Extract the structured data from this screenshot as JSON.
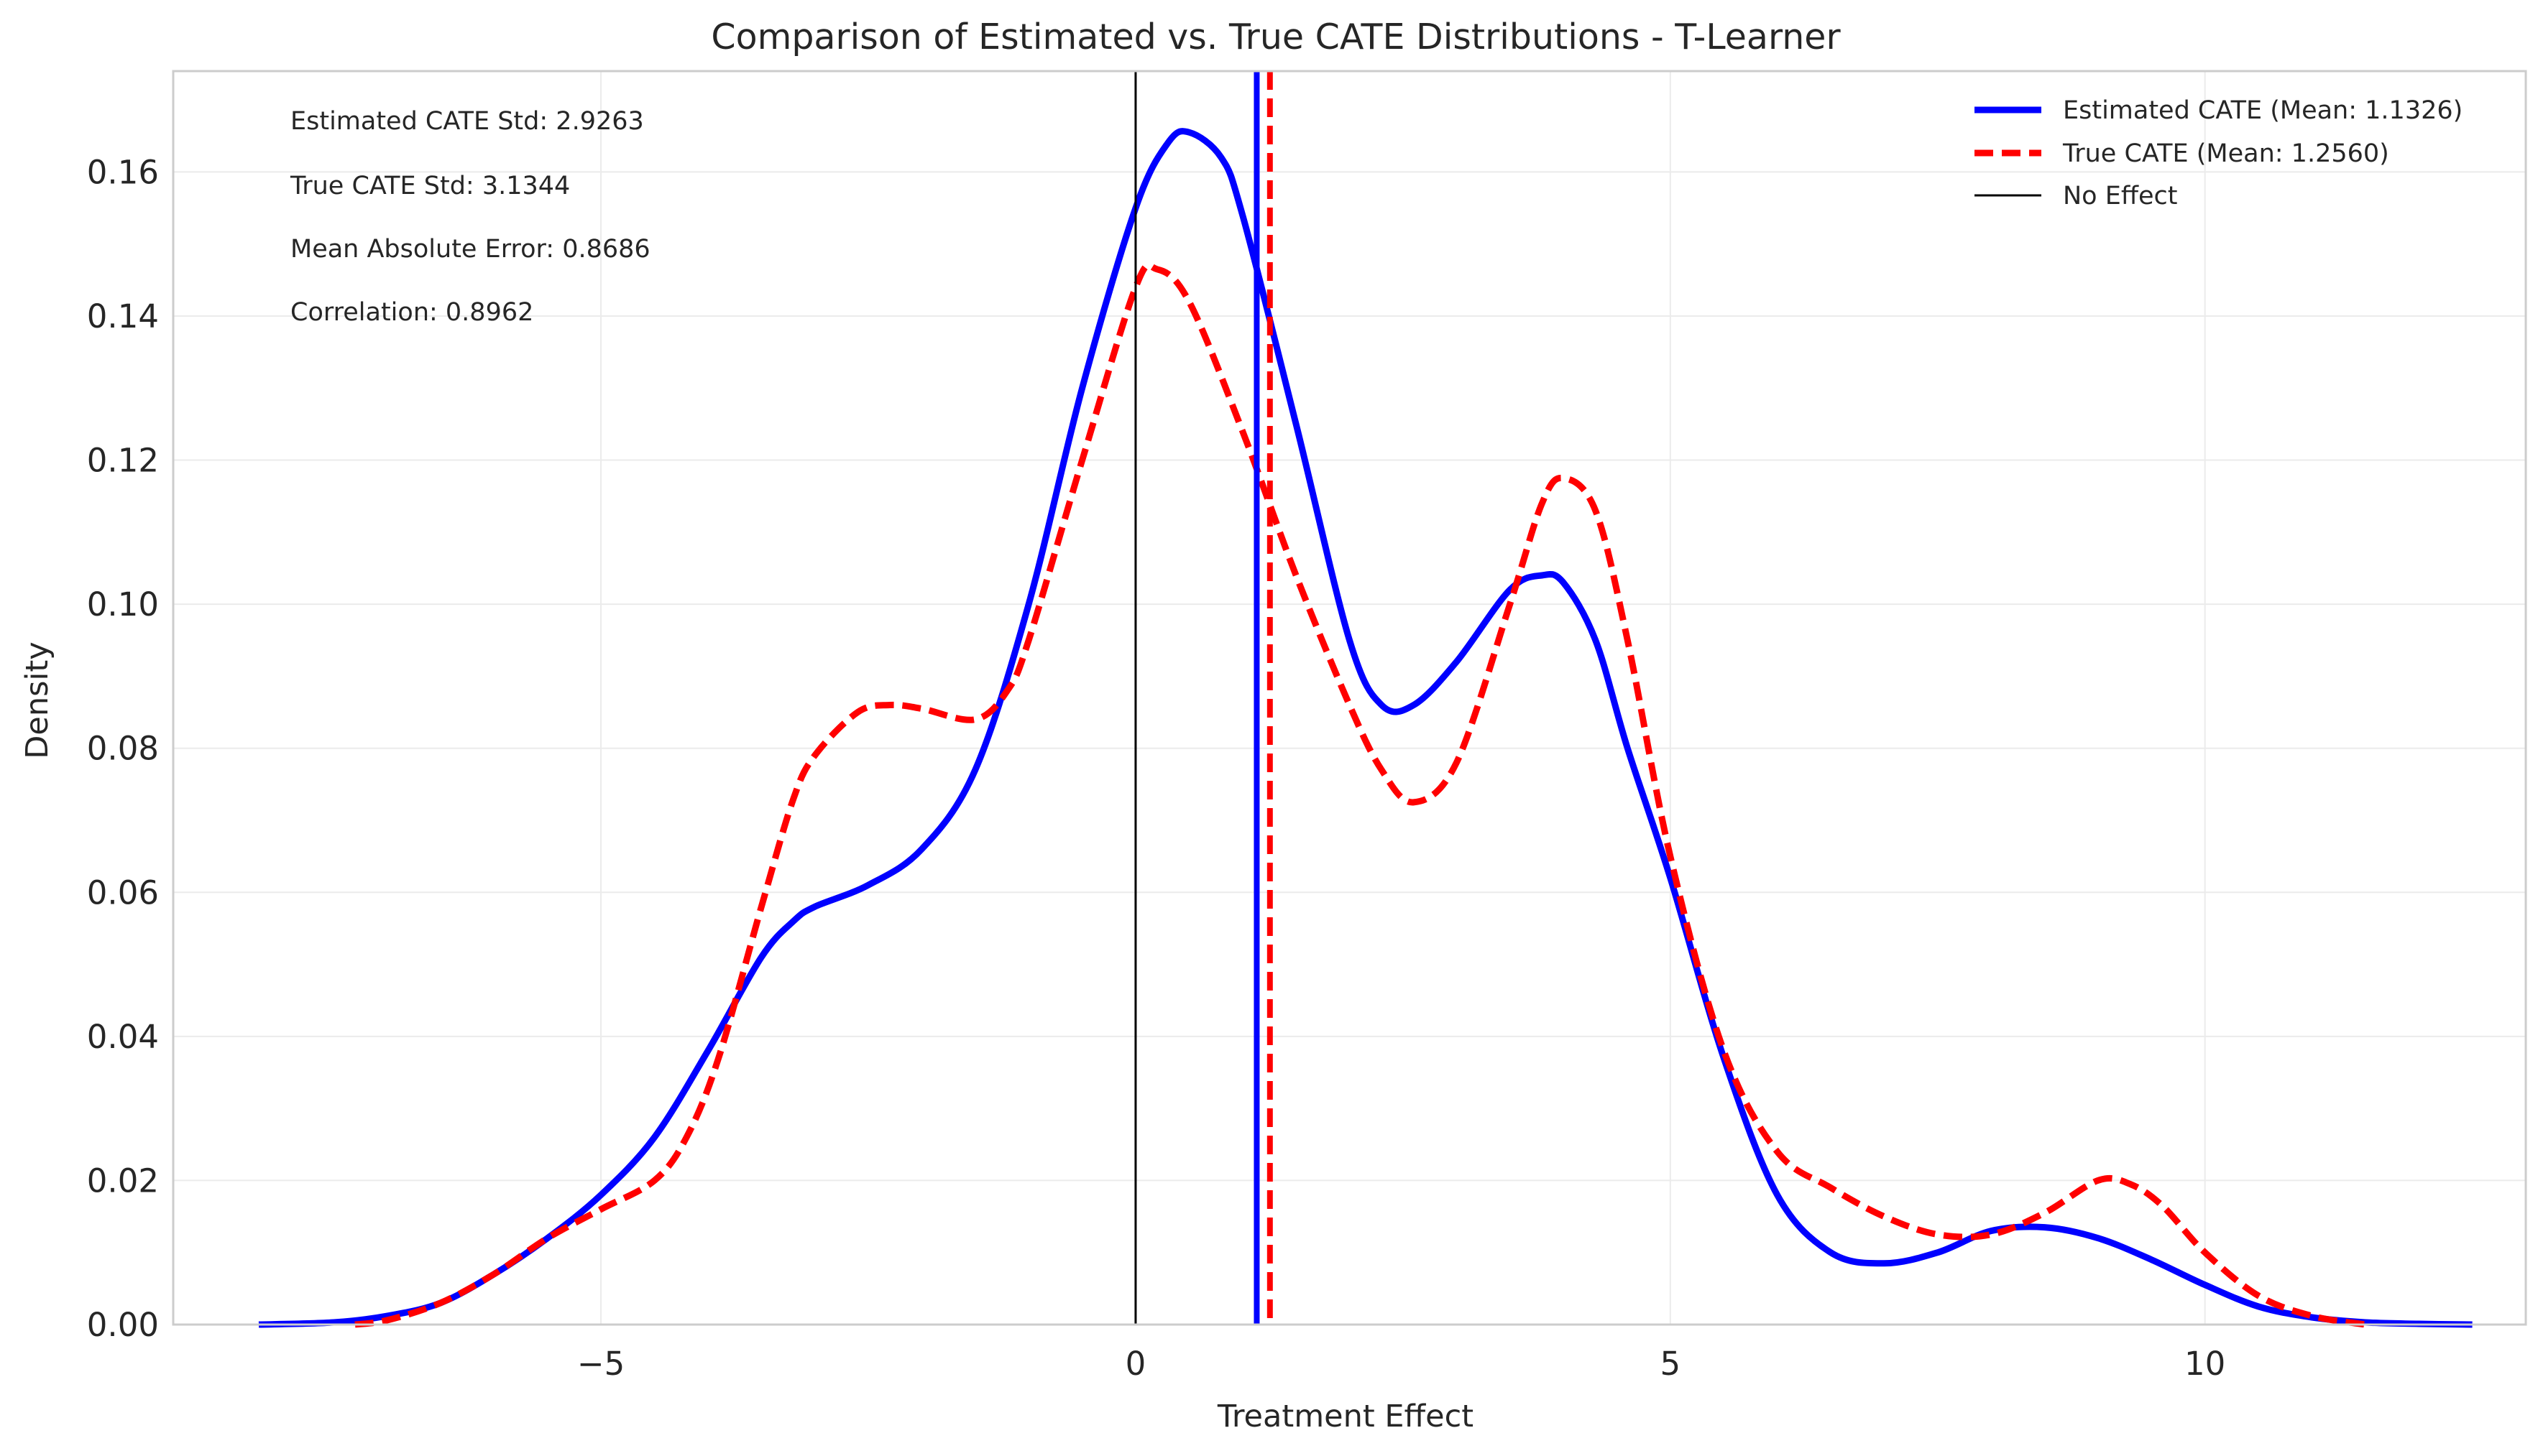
{
  "chart_data": {
    "type": "line",
    "title": "Comparison of Estimated vs. True CATE Distributions - T-Learner",
    "xlabel": "Treatment Effect",
    "ylabel": "Density",
    "xlim": [
      -9.0,
      13.0
    ],
    "ylim": [
      0.0,
      0.174
    ],
    "grid": true,
    "legend_position": "top-right",
    "x_ticks": [
      {
        "value": -5,
        "label": "−5"
      },
      {
        "value": 0,
        "label": "0"
      },
      {
        "value": 5,
        "label": "5"
      },
      {
        "value": 10,
        "label": "10"
      }
    ],
    "y_ticks": [
      {
        "value": 0.0,
        "label": "0.00"
      },
      {
        "value": 0.02,
        "label": "0.02"
      },
      {
        "value": 0.04,
        "label": "0.04"
      },
      {
        "value": 0.06,
        "label": "0.06"
      },
      {
        "value": 0.08,
        "label": "0.08"
      },
      {
        "value": 0.1,
        "label": "0.10"
      },
      {
        "value": 0.12,
        "label": "0.12"
      },
      {
        "value": 0.14,
        "label": "0.14"
      },
      {
        "value": 0.16,
        "label": "0.16"
      }
    ],
    "series": [
      {
        "name": "Estimated CATE (Mean: 1.1326)",
        "color": "#0000ff",
        "style": "solid",
        "x": [
          -8.2,
          -7.5,
          -7.0,
          -6.5,
          -6.0,
          -5.5,
          -5.0,
          -4.5,
          -4.0,
          -3.5,
          -3.2,
          -3.0,
          -2.5,
          -2.0,
          -1.5,
          -1.0,
          -0.5,
          0.0,
          0.3,
          0.5,
          0.8,
          1.0,
          1.5,
          2.0,
          2.3,
          2.6,
          3.0,
          3.5,
          3.8,
          4.0,
          4.3,
          4.6,
          5.0,
          5.5,
          6.0,
          6.5,
          7.0,
          7.5,
          8.0,
          8.5,
          9.0,
          9.5,
          10.0,
          10.5,
          11.0,
          11.5,
          12.0,
          12.5
        ],
        "y": [
          0.0,
          0.0003,
          0.0012,
          0.003,
          0.007,
          0.012,
          0.018,
          0.026,
          0.038,
          0.051,
          0.056,
          0.058,
          0.061,
          0.066,
          0.077,
          0.1,
          0.13,
          0.155,
          0.164,
          0.1655,
          0.162,
          0.154,
          0.125,
          0.095,
          0.086,
          0.086,
          0.092,
          0.102,
          0.104,
          0.103,
          0.095,
          0.08,
          0.062,
          0.037,
          0.018,
          0.01,
          0.0085,
          0.01,
          0.013,
          0.0135,
          0.012,
          0.009,
          0.0055,
          0.0025,
          0.001,
          0.0003,
          0.0001,
          0.0
        ]
      },
      {
        "name": "True CATE (Mean: 1.2560)",
        "color": "#ff0000",
        "style": "dashed",
        "x": [
          -7.3,
          -7.0,
          -6.5,
          -6.0,
          -5.5,
          -5.0,
          -4.5,
          -4.2,
          -3.9,
          -3.5,
          -3.2,
          -3.0,
          -2.6,
          -2.3,
          -2.0,
          -1.5,
          -1.2,
          -1.0,
          -0.5,
          0.0,
          0.2,
          0.5,
          1.0,
          1.5,
          2.0,
          2.3,
          2.6,
          3.0,
          3.5,
          3.8,
          4.0,
          4.3,
          4.6,
          5.0,
          5.5,
          6.0,
          6.5,
          7.0,
          7.5,
          8.0,
          8.5,
          9.0,
          9.3,
          9.6,
          10.0,
          10.5,
          11.0,
          11.5
        ],
        "y": [
          0.0,
          0.0006,
          0.003,
          0.007,
          0.012,
          0.016,
          0.02,
          0.026,
          0.037,
          0.058,
          0.073,
          0.079,
          0.085,
          0.086,
          0.0855,
          0.084,
          0.088,
          0.095,
          0.12,
          0.144,
          0.1465,
          0.142,
          0.124,
          0.104,
          0.086,
          0.077,
          0.0725,
          0.078,
          0.1,
          0.114,
          0.1175,
          0.113,
          0.095,
          0.065,
          0.038,
          0.024,
          0.019,
          0.015,
          0.0125,
          0.0125,
          0.0155,
          0.02,
          0.0195,
          0.0165,
          0.01,
          0.004,
          0.0012,
          0.0
        ]
      }
    ],
    "vlines": [
      {
        "x": 1.1326,
        "color": "#0000ff",
        "style": "solid"
      },
      {
        "x": 1.256,
        "color": "#ff0000",
        "style": "dashed"
      },
      {
        "x": 0,
        "color": "#000000",
        "style": "solid"
      }
    ],
    "legend": [
      {
        "label": "Estimated CATE (Mean: 1.1326)",
        "color": "#0000ff",
        "style": "solid"
      },
      {
        "label": "True CATE (Mean: 1.2560)",
        "color": "#ff0000",
        "style": "dashed"
      },
      {
        "label": "No Effect",
        "color": "#000000",
        "style": "thin"
      }
    ],
    "annotations": [
      "Estimated CATE Std: 2.9263",
      "True CATE Std: 3.1344",
      "Mean Absolute Error: 0.8686",
      "Correlation: 0.8962"
    ]
  }
}
